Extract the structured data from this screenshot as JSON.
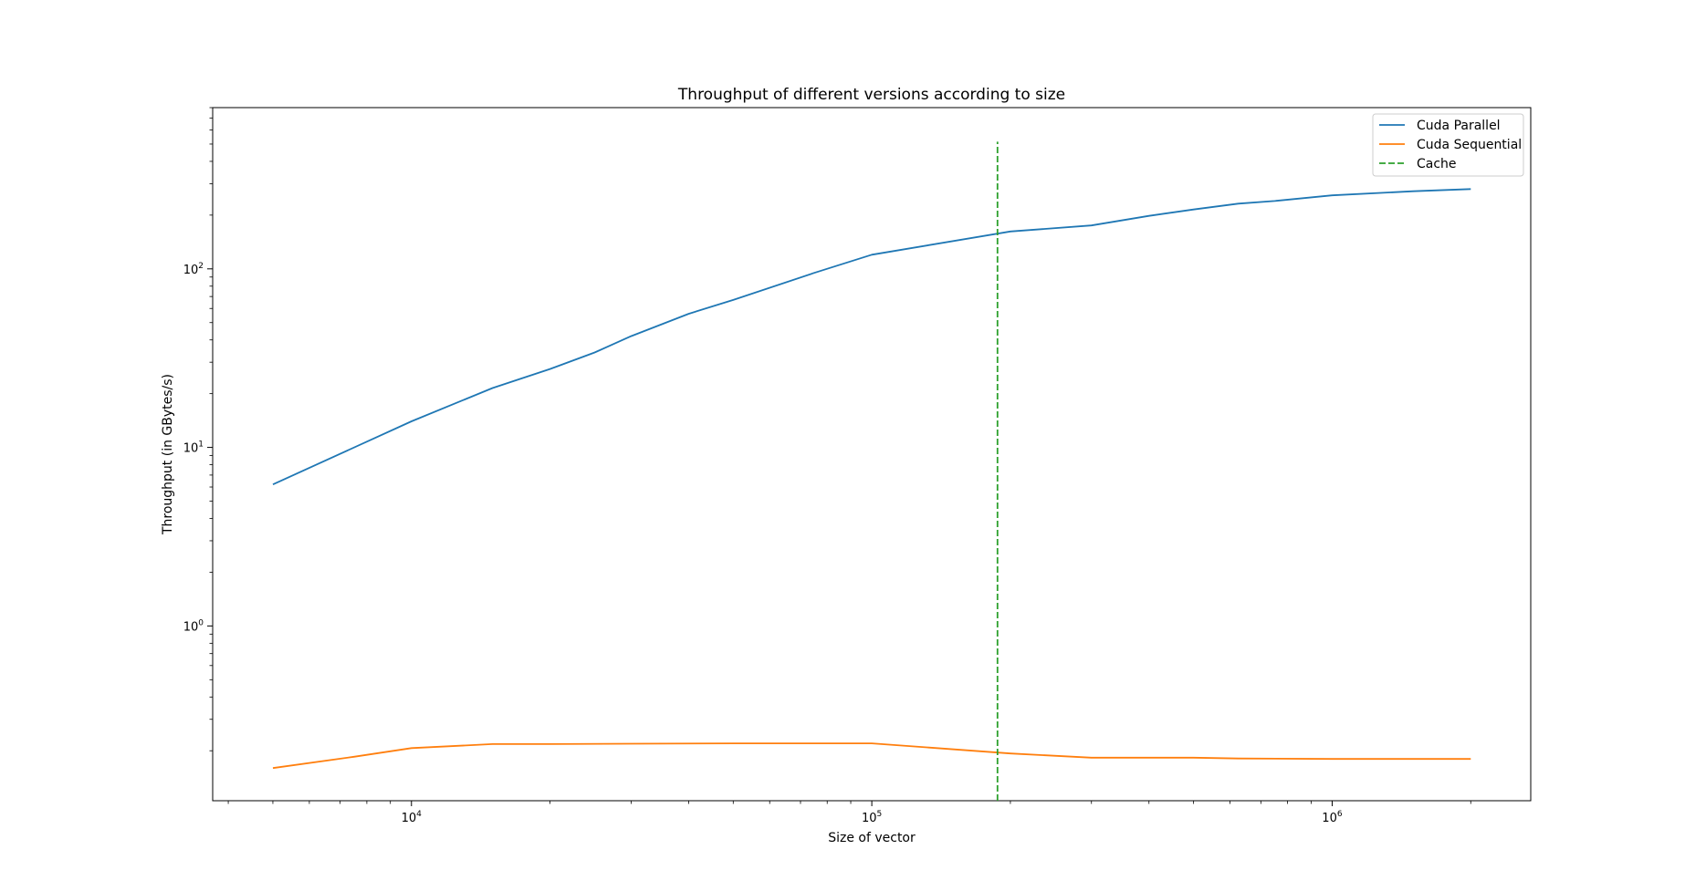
{
  "chart_data": {
    "type": "line",
    "title": "Throughput of different versions according to size",
    "xlabel": "Size of vector",
    "ylabel": "Throughput (in GBytes/s)",
    "xscale": "log",
    "yscale": "log",
    "xlim": [
      3700,
      2700000
    ],
    "ylim": [
      0.105,
      800
    ],
    "x_ticks": [
      {
        "value": 10000,
        "base": "10",
        "exp": "4"
      },
      {
        "value": 100000,
        "base": "10",
        "exp": "5"
      },
      {
        "value": 1000000,
        "base": "10",
        "exp": "6"
      }
    ],
    "y_ticks": [
      {
        "value": 1,
        "base": "10",
        "exp": "0"
      },
      {
        "value": 10,
        "base": "10",
        "exp": "1"
      },
      {
        "value": 100,
        "base": "10",
        "exp": "2"
      }
    ],
    "legend_position": "upper-right",
    "grid": false,
    "series": [
      {
        "name": "Cuda Parallel",
        "color": "#1f77b4",
        "style": "solid",
        "x": [
          5000,
          10000,
          15000,
          20000,
          25000,
          30000,
          40000,
          50000,
          75000,
          100000,
          200000,
          300000,
          400000,
          500000,
          625000,
          750000,
          1000000,
          1500000,
          2000000
        ],
        "y": [
          6.2,
          14,
          21.5,
          27.5,
          34,
          42,
          56,
          67,
          95,
          120,
          162,
          175,
          198,
          215,
          232,
          240,
          258,
          272,
          280
        ]
      },
      {
        "name": "Cuda Sequential",
        "color": "#ff7f0e",
        "style": "solid",
        "x": [
          5000,
          7500,
          10000,
          15000,
          20000,
          30000,
          50000,
          75000,
          100000,
          200000,
          300000,
          500000,
          625000,
          1000000,
          2000000
        ],
        "y": [
          0.16,
          0.185,
          0.207,
          0.218,
          0.218,
          0.219,
          0.22,
          0.22,
          0.22,
          0.193,
          0.183,
          0.183,
          0.181,
          0.18,
          0.18
        ]
      },
      {
        "name": "Cache",
        "color": "#2ca02c",
        "style": "dashed",
        "x": [
          187500,
          187500
        ],
        "y": [
          0.105,
          515
        ]
      }
    ]
  }
}
